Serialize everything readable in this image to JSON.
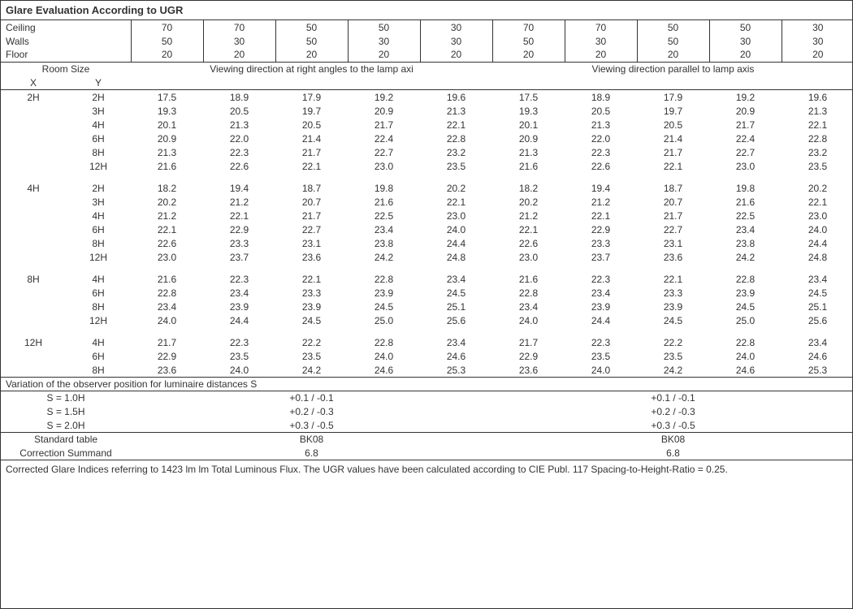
{
  "title": "Glare Evaluation According to UGR",
  "surfaces": {
    "labels": [
      "Ceiling",
      "Walls",
      "Floor"
    ],
    "ceiling": [
      "70",
      "70",
      "50",
      "50",
      "30",
      "70",
      "70",
      "50",
      "50",
      "30"
    ],
    "walls": [
      "50",
      "30",
      "50",
      "30",
      "30",
      "50",
      "30",
      "50",
      "30",
      "30"
    ],
    "floor": [
      "20",
      "20",
      "20",
      "20",
      "20",
      "20",
      "20",
      "20",
      "20",
      "20"
    ]
  },
  "room_size_header": {
    "label": "Room Size",
    "x": "X",
    "y": "Y"
  },
  "viewing": {
    "right": "Viewing direction at right angles to the lamp axi",
    "parallel": "Viewing direction parallel to lamp axis"
  },
  "groups": [
    {
      "x": "2H",
      "rows": [
        {
          "y": "2H",
          "r": [
            "17.5",
            "18.9",
            "17.9",
            "19.2",
            "19.6"
          ],
          "p": [
            "17.5",
            "18.9",
            "17.9",
            "19.2",
            "19.6"
          ]
        },
        {
          "y": "3H",
          "r": [
            "19.3",
            "20.5",
            "19.7",
            "20.9",
            "21.3"
          ],
          "p": [
            "19.3",
            "20.5",
            "19.7",
            "20.9",
            "21.3"
          ]
        },
        {
          "y": "4H",
          "r": [
            "20.1",
            "21.3",
            "20.5",
            "21.7",
            "22.1"
          ],
          "p": [
            "20.1",
            "21.3",
            "20.5",
            "21.7",
            "22.1"
          ]
        },
        {
          "y": "6H",
          "r": [
            "20.9",
            "22.0",
            "21.4",
            "22.4",
            "22.8"
          ],
          "p": [
            "20.9",
            "22.0",
            "21.4",
            "22.4",
            "22.8"
          ]
        },
        {
          "y": "8H",
          "r": [
            "21.3",
            "22.3",
            "21.7",
            "22.7",
            "23.2"
          ],
          "p": [
            "21.3",
            "22.3",
            "21.7",
            "22.7",
            "23.2"
          ]
        },
        {
          "y": "12H",
          "r": [
            "21.6",
            "22.6",
            "22.1",
            "23.0",
            "23.5"
          ],
          "p": [
            "21.6",
            "22.6",
            "22.1",
            "23.0",
            "23.5"
          ]
        }
      ]
    },
    {
      "x": "4H",
      "rows": [
        {
          "y": "2H",
          "r": [
            "18.2",
            "19.4",
            "18.7",
            "19.8",
            "20.2"
          ],
          "p": [
            "18.2",
            "19.4",
            "18.7",
            "19.8",
            "20.2"
          ]
        },
        {
          "y": "3H",
          "r": [
            "20.2",
            "21.2",
            "20.7",
            "21.6",
            "22.1"
          ],
          "p": [
            "20.2",
            "21.2",
            "20.7",
            "21.6",
            "22.1"
          ]
        },
        {
          "y": "4H",
          "r": [
            "21.2",
            "22.1",
            "21.7",
            "22.5",
            "23.0"
          ],
          "p": [
            "21.2",
            "22.1",
            "21.7",
            "22.5",
            "23.0"
          ]
        },
        {
          "y": "6H",
          "r": [
            "22.1",
            "22.9",
            "22.7",
            "23.4",
            "24.0"
          ],
          "p": [
            "22.1",
            "22.9",
            "22.7",
            "23.4",
            "24.0"
          ]
        },
        {
          "y": "8H",
          "r": [
            "22.6",
            "23.3",
            "23.1",
            "23.8",
            "24.4"
          ],
          "p": [
            "22.6",
            "23.3",
            "23.1",
            "23.8",
            "24.4"
          ]
        },
        {
          "y": "12H",
          "r": [
            "23.0",
            "23.7",
            "23.6",
            "24.2",
            "24.8"
          ],
          "p": [
            "23.0",
            "23.7",
            "23.6",
            "24.2",
            "24.8"
          ]
        }
      ]
    },
    {
      "x": "8H",
      "rows": [
        {
          "y": "4H",
          "r": [
            "21.6",
            "22.3",
            "22.1",
            "22.8",
            "23.4"
          ],
          "p": [
            "21.6",
            "22.3",
            "22.1",
            "22.8",
            "23.4"
          ]
        },
        {
          "y": "6H",
          "r": [
            "22.8",
            "23.4",
            "23.3",
            "23.9",
            "24.5"
          ],
          "p": [
            "22.8",
            "23.4",
            "23.3",
            "23.9",
            "24.5"
          ]
        },
        {
          "y": "8H",
          "r": [
            "23.4",
            "23.9",
            "23.9",
            "24.5",
            "25.1"
          ],
          "p": [
            "23.4",
            "23.9",
            "23.9",
            "24.5",
            "25.1"
          ]
        },
        {
          "y": "12H",
          "r": [
            "24.0",
            "24.4",
            "24.5",
            "25.0",
            "25.6"
          ],
          "p": [
            "24.0",
            "24.4",
            "24.5",
            "25.0",
            "25.6"
          ]
        }
      ]
    },
    {
      "x": "12H",
      "rows": [
        {
          "y": "4H",
          "r": [
            "21.7",
            "22.3",
            "22.2",
            "22.8",
            "23.4"
          ],
          "p": [
            "21.7",
            "22.3",
            "22.2",
            "22.8",
            "23.4"
          ]
        },
        {
          "y": "6H",
          "r": [
            "22.9",
            "23.5",
            "23.5",
            "24.0",
            "24.6"
          ],
          "p": [
            "22.9",
            "23.5",
            "23.5",
            "24.0",
            "24.6"
          ]
        },
        {
          "y": "8H",
          "r": [
            "23.6",
            "24.0",
            "24.2",
            "24.6",
            "25.3"
          ],
          "p": [
            "23.6",
            "24.0",
            "24.2",
            "24.6",
            "25.3"
          ]
        }
      ]
    }
  ],
  "variation": {
    "title": "Variation of the observer position for luminaire distances S",
    "rows": [
      {
        "s": "S = 1.0H",
        "r": "+0.1 / -0.1",
        "p": "+0.1 / -0.1"
      },
      {
        "s": "S = 1.5H",
        "r": "+0.2 / -0.3",
        "p": "+0.2 / -0.3"
      },
      {
        "s": "S = 2.0H",
        "r": "+0.3 / -0.5",
        "p": "+0.3 / -0.5"
      }
    ]
  },
  "standard": {
    "table_label": "Standard table",
    "table_r": "BK08",
    "table_p": "BK08",
    "correction_label": "Correction Summand",
    "correction_r": "6.8",
    "correction_p": "6.8"
  },
  "footnote": "Corrected Glare Indices referring to 1423 lm lm Total Luminous Flux. The UGR values have been calculated according to CIE Publ. 117    Spacing-to-Height-Ratio = 0.25."
}
